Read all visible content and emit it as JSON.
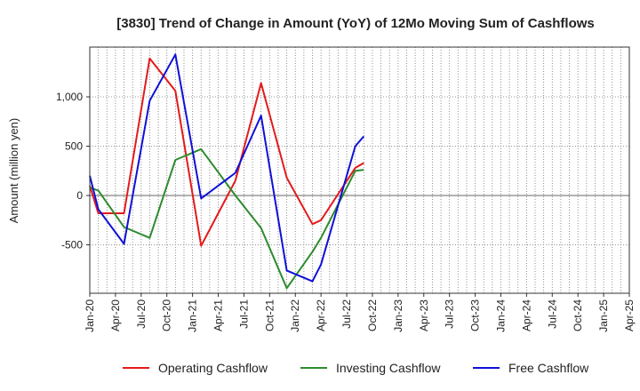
{
  "chart_data": {
    "type": "line",
    "title": "[3830]  Trend of Change in Amount (YoY) of 12Mo Moving Sum of Cashflows",
    "xlabel": "",
    "ylabel": "Amount (million yen)",
    "ylim": [
      -1000,
      1500
    ],
    "y_ticks": [
      -500,
      0,
      500,
      1000
    ],
    "y_tick_labels": [
      "-500",
      "0",
      "500",
      "1,000"
    ],
    "x_tick_labels": [
      "Jan-20",
      "Apr-20",
      "Jul-20",
      "Oct-20",
      "Jan-21",
      "Apr-21",
      "Jul-21",
      "Oct-21",
      "Jan-22",
      "Apr-22",
      "Jul-22",
      "Oct-22",
      "Jan-23",
      "Apr-23",
      "Jul-23",
      "Oct-23",
      "Jan-24",
      "Apr-24",
      "Jul-24",
      "Oct-24",
      "Jan-25",
      "Apr-25"
    ],
    "grid": true,
    "legend_position": "bottom",
    "series": [
      {
        "name": "Operating Cashflow",
        "color": "#e31a1c",
        "points": [
          [
            0,
            100
          ],
          [
            1,
            -180
          ],
          [
            3,
            -180
          ],
          [
            4,
            -180
          ],
          [
            7,
            1390
          ],
          [
            10,
            1060
          ],
          [
            13,
            -510
          ],
          [
            17,
            150
          ],
          [
            20,
            1140
          ],
          [
            23,
            180
          ],
          [
            26,
            -290
          ],
          [
            27,
            -250
          ],
          [
            31,
            280
          ],
          [
            32,
            330
          ]
        ]
      },
      {
        "name": "Investing Cashflow",
        "color": "#2e8b2e",
        "points": [
          [
            0,
            80
          ],
          [
            1,
            50
          ],
          [
            4,
            -320
          ],
          [
            7,
            -430
          ],
          [
            10,
            360
          ],
          [
            13,
            470
          ],
          [
            17,
            0
          ],
          [
            20,
            -330
          ],
          [
            23,
            -940
          ],
          [
            26,
            -570
          ],
          [
            27,
            -430
          ],
          [
            31,
            250
          ],
          [
            32,
            260
          ]
        ]
      },
      {
        "name": "Free Cashflow",
        "color": "#1010d8",
        "points": [
          [
            0,
            200
          ],
          [
            1,
            -140
          ],
          [
            4,
            -490
          ],
          [
            7,
            960
          ],
          [
            10,
            1430
          ],
          [
            13,
            -30
          ],
          [
            17,
            230
          ],
          [
            20,
            810
          ],
          [
            23,
            -760
          ],
          [
            26,
            -870
          ],
          [
            27,
            -700
          ],
          [
            31,
            500
          ],
          [
            32,
            600
          ]
        ]
      }
    ]
  }
}
